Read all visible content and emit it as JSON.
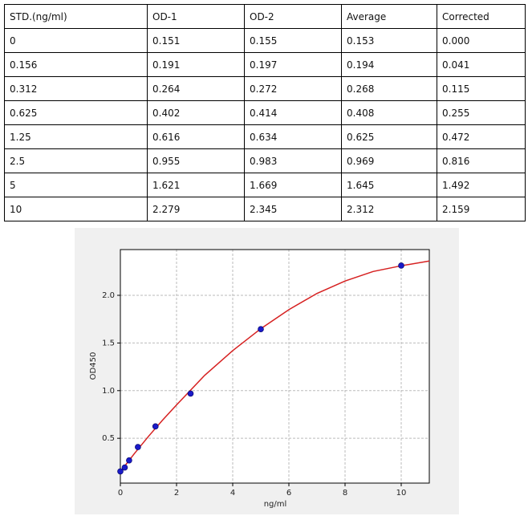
{
  "table": {
    "header": [
      "STD.(ng/ml)",
      "OD-1",
      "OD-2",
      "Average",
      "Corrected"
    ],
    "rows": [
      [
        "0",
        "0.151",
        "0.155",
        "0.153",
        "0.000"
      ],
      [
        "0.156",
        "0.191",
        "0.197",
        "0.194",
        "0.041"
      ],
      [
        "0.312",
        "0.264",
        "0.272",
        "0.268",
        "0.115"
      ],
      [
        "0.625",
        "0.402",
        "0.414",
        "0.408",
        "0.255"
      ],
      [
        "1.25",
        "0.616",
        "0.634",
        "0.625",
        "0.472"
      ],
      [
        "2.5",
        "0.955",
        "0.983",
        "0.969",
        "0.816"
      ],
      [
        "5",
        "1.621",
        "1.669",
        "1.645",
        "1.492"
      ],
      [
        "10",
        "2.279",
        "2.345",
        "2.312",
        "2.159"
      ]
    ]
  },
  "chart_data": {
    "type": "scatter",
    "x_label": "ng/ml",
    "y_label": "OD450",
    "x": [
      0,
      0.156,
      0.312,
      0.625,
      1.25,
      2.5,
      5,
      10
    ],
    "series": [
      {
        "color": "#1a1ac8",
        "values": [
          0.153,
          0.194,
          0.268,
          0.408,
          0.625,
          0.969,
          1.645,
          2.312
        ]
      }
    ],
    "curve": {
      "color": "#d62020",
      "x": [
        0,
        0.5,
        1,
        1.5,
        2,
        3,
        4,
        5,
        6,
        7,
        8,
        9,
        10,
        11
      ],
      "values": [
        0.15,
        0.34,
        0.52,
        0.69,
        0.85,
        1.16,
        1.42,
        1.65,
        1.85,
        2.02,
        2.15,
        2.25,
        2.31,
        2.36
      ]
    },
    "xlim": [
      0,
      11
    ],
    "ylim": [
      0.03,
      2.48
    ],
    "xticks": [
      0,
      2,
      4,
      6,
      8,
      10
    ],
    "yticks": [
      0.5,
      {
        "value": 1,
        "label": "1.0"
      },
      1.5,
      {
        "value": 2,
        "label": "2.0"
      }
    ],
    "grid": true
  }
}
